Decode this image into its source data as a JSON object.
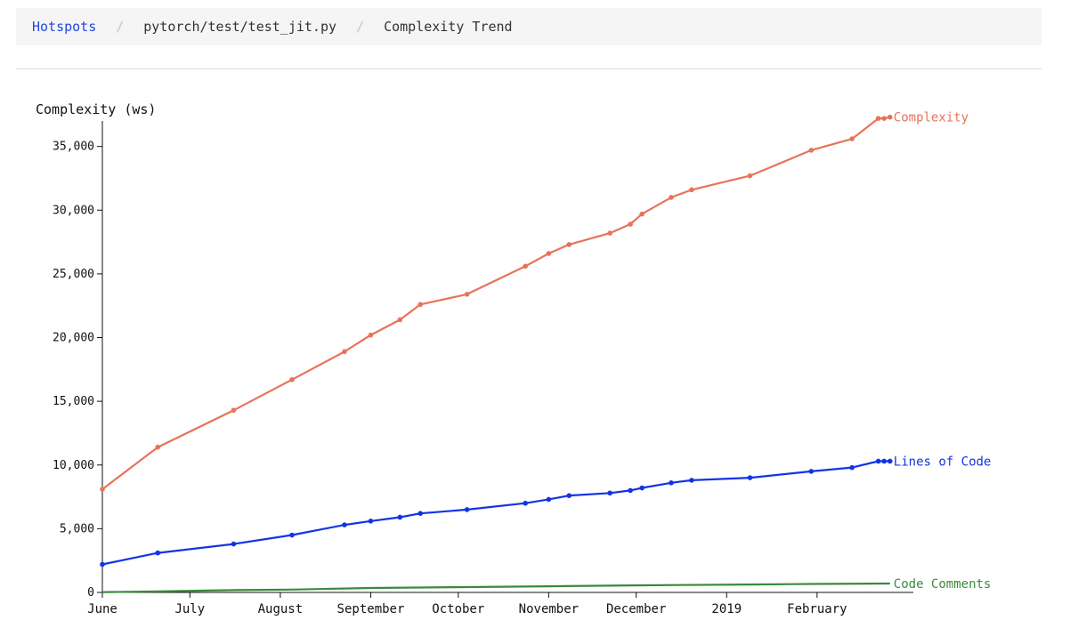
{
  "breadcrumb": {
    "items": [
      {
        "label": "Hotspots",
        "link": true
      },
      {
        "label": "pytorch/test/test_jit.py",
        "link": false
      },
      {
        "label": "Complexity Trend",
        "link": false
      }
    ],
    "separator": "/"
  },
  "chart_data": {
    "type": "line",
    "ylabel": "Complexity (ws)",
    "xlabel": "",
    "ylim": [
      0,
      37000
    ],
    "y_ticks": [
      0,
      5000,
      10000,
      15000,
      20000,
      25000,
      30000,
      35000
    ],
    "y_tick_labels": [
      "0",
      "5,000",
      "10,000",
      "15,000",
      "20,000",
      "25,000",
      "30,000",
      "35,000"
    ],
    "x_range": [
      "2018-06-01",
      "2019-03-06"
    ],
    "x_ticks": [
      {
        "date": "2018-06-01",
        "label": "June"
      },
      {
        "date": "2018-07-01",
        "label": "July"
      },
      {
        "date": "2018-08-01",
        "label": "August"
      },
      {
        "date": "2018-09-01",
        "label": "September"
      },
      {
        "date": "2018-10-01",
        "label": "October"
      },
      {
        "date": "2018-11-01",
        "label": "November"
      },
      {
        "date": "2018-12-01",
        "label": "December"
      },
      {
        "date": "2019-01-01",
        "label": "2019"
      },
      {
        "date": "2019-02-01",
        "label": "February"
      }
    ],
    "grid": false,
    "legend": "series labels at right end of lines",
    "series": [
      {
        "name": "Complexity",
        "color": "#e8735a",
        "show_points": true,
        "points": [
          [
            "2018-06-01",
            8100
          ],
          [
            "2018-06-20",
            11400
          ],
          [
            "2018-07-16",
            14300
          ],
          [
            "2018-08-05",
            16700
          ],
          [
            "2018-08-23",
            18900
          ],
          [
            "2018-09-01",
            20200
          ],
          [
            "2018-09-11",
            21400
          ],
          [
            "2018-09-18",
            22600
          ],
          [
            "2018-10-04",
            23400
          ],
          [
            "2018-10-24",
            25600
          ],
          [
            "2018-11-01",
            26600
          ],
          [
            "2018-11-08",
            27300
          ],
          [
            "2018-11-22",
            28200
          ],
          [
            "2018-11-29",
            28900
          ],
          [
            "2018-12-03",
            29700
          ],
          [
            "2018-12-13",
            31000
          ],
          [
            "2018-12-20",
            31600
          ],
          [
            "2019-01-09",
            32700
          ],
          [
            "2019-01-30",
            34700
          ],
          [
            "2019-02-13",
            35600
          ],
          [
            "2019-02-22",
            37200
          ],
          [
            "2019-02-24",
            37200
          ],
          [
            "2019-02-26",
            37300
          ]
        ]
      },
      {
        "name": "Lines of Code",
        "color": "#1234e6",
        "show_points": true,
        "points": [
          [
            "2018-06-01",
            2200
          ],
          [
            "2018-06-20",
            3100
          ],
          [
            "2018-07-16",
            3800
          ],
          [
            "2018-08-05",
            4500
          ],
          [
            "2018-08-23",
            5300
          ],
          [
            "2018-09-01",
            5600
          ],
          [
            "2018-09-11",
            5900
          ],
          [
            "2018-09-18",
            6200
          ],
          [
            "2018-10-04",
            6500
          ],
          [
            "2018-10-24",
            7000
          ],
          [
            "2018-11-01",
            7300
          ],
          [
            "2018-11-08",
            7600
          ],
          [
            "2018-11-22",
            7800
          ],
          [
            "2018-11-29",
            8000
          ],
          [
            "2018-12-03",
            8200
          ],
          [
            "2018-12-13",
            8600
          ],
          [
            "2018-12-20",
            8800
          ],
          [
            "2019-01-09",
            9000
          ],
          [
            "2019-01-30",
            9500
          ],
          [
            "2019-02-13",
            9800
          ],
          [
            "2019-02-22",
            10300
          ],
          [
            "2019-02-24",
            10300
          ],
          [
            "2019-02-26",
            10300
          ]
        ]
      },
      {
        "name": "Code Comments",
        "color": "#3a8a3a",
        "show_points": false,
        "points": [
          [
            "2018-06-01",
            20
          ],
          [
            "2018-06-20",
            80
          ],
          [
            "2018-07-16",
            180
          ],
          [
            "2018-08-05",
            220
          ],
          [
            "2018-09-01",
            350
          ],
          [
            "2018-10-04",
            420
          ],
          [
            "2018-11-01",
            480
          ],
          [
            "2018-12-03",
            560
          ],
          [
            "2019-01-09",
            620
          ],
          [
            "2019-01-30",
            660
          ],
          [
            "2019-02-26",
            700
          ]
        ]
      }
    ]
  }
}
